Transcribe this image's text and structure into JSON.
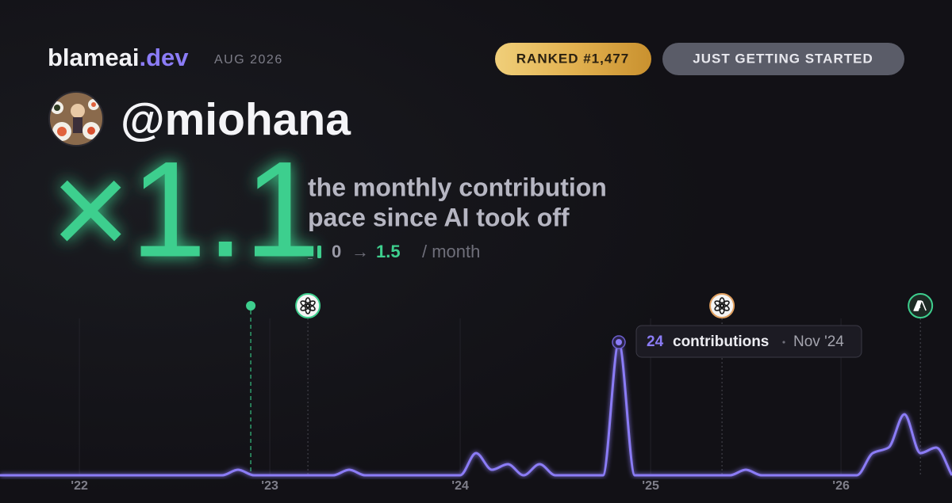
{
  "header": {
    "brand": "blameai",
    "brand_suffix": ".dev",
    "date": "AUG 2026",
    "rank_badge": "RANKED #1,477",
    "status_badge": "JUST GETTING STARTED"
  },
  "profile": {
    "handle": "@miohana"
  },
  "metric": {
    "multiplier": "×1.1",
    "description": [
      "the monthly contribution",
      "pace since AI took off"
    ],
    "before": 0,
    "arrow": "→",
    "after": 1.5,
    "unit": "/ month"
  },
  "tooltip": {
    "label": "contributions",
    "date": "Nov '24"
  },
  "chart_data": {
    "type": "line",
    "x": [
      2021.583,
      2021.667,
      2021.75,
      2021.833,
      2021.917,
      2022,
      2022.083,
      2022.167,
      2022.25,
      2022.333,
      2022.417,
      2022.5,
      2022.583,
      2022.667,
      2022.75,
      2022.833,
      2022.917,
      2023,
      2023.083,
      2023.167,
      2023.25,
      2023.333,
      2023.417,
      2023.5,
      2023.583,
      2023.667,
      2023.75,
      2023.833,
      2023.917,
      2024,
      2024.083,
      2024.167,
      2024.25,
      2024.333,
      2024.417,
      2024.5,
      2024.583,
      2024.667,
      2024.75,
      2024.833,
      2024.917,
      2025,
      2025.083,
      2025.167,
      2025.25,
      2025.333,
      2025.417,
      2025.5,
      2025.583,
      2025.667,
      2025.75,
      2025.833,
      2025.917,
      2026,
      2026.083,
      2026.167,
      2026.25,
      2026.333,
      2026.417,
      2026.5,
      2026.583
    ],
    "series": [
      {
        "name": "contributions",
        "color": "#8b7cf6",
        "values": [
          0,
          0,
          0,
          0,
          0,
          0,
          0,
          0,
          0,
          0,
          0,
          0,
          0,
          0,
          0,
          1,
          0,
          0,
          0,
          0,
          0,
          0,
          1,
          0,
          0,
          0,
          0,
          0,
          0,
          0,
          4,
          1,
          2,
          0,
          2,
          0,
          0,
          0,
          0,
          24,
          0,
          0,
          0,
          0,
          0,
          0,
          0,
          1,
          0,
          0,
          0,
          0,
          0,
          0,
          0,
          4,
          5,
          11,
          4,
          5,
          0
        ]
      }
    ],
    "xlim": [
      2021.583,
      2026.583
    ],
    "ylim": [
      0,
      24
    ],
    "xticks": [
      {
        "value": 2022,
        "label": "'22"
      },
      {
        "value": 2023,
        "label": "'23"
      },
      {
        "value": 2024,
        "label": "'24"
      },
      {
        "value": 2025,
        "label": "'25"
      },
      {
        "value": 2026,
        "label": "'26"
      }
    ],
    "grid": true,
    "event_markers": [
      2022.9,
      2023.2,
      2025.375,
      2026.417
    ]
  }
}
